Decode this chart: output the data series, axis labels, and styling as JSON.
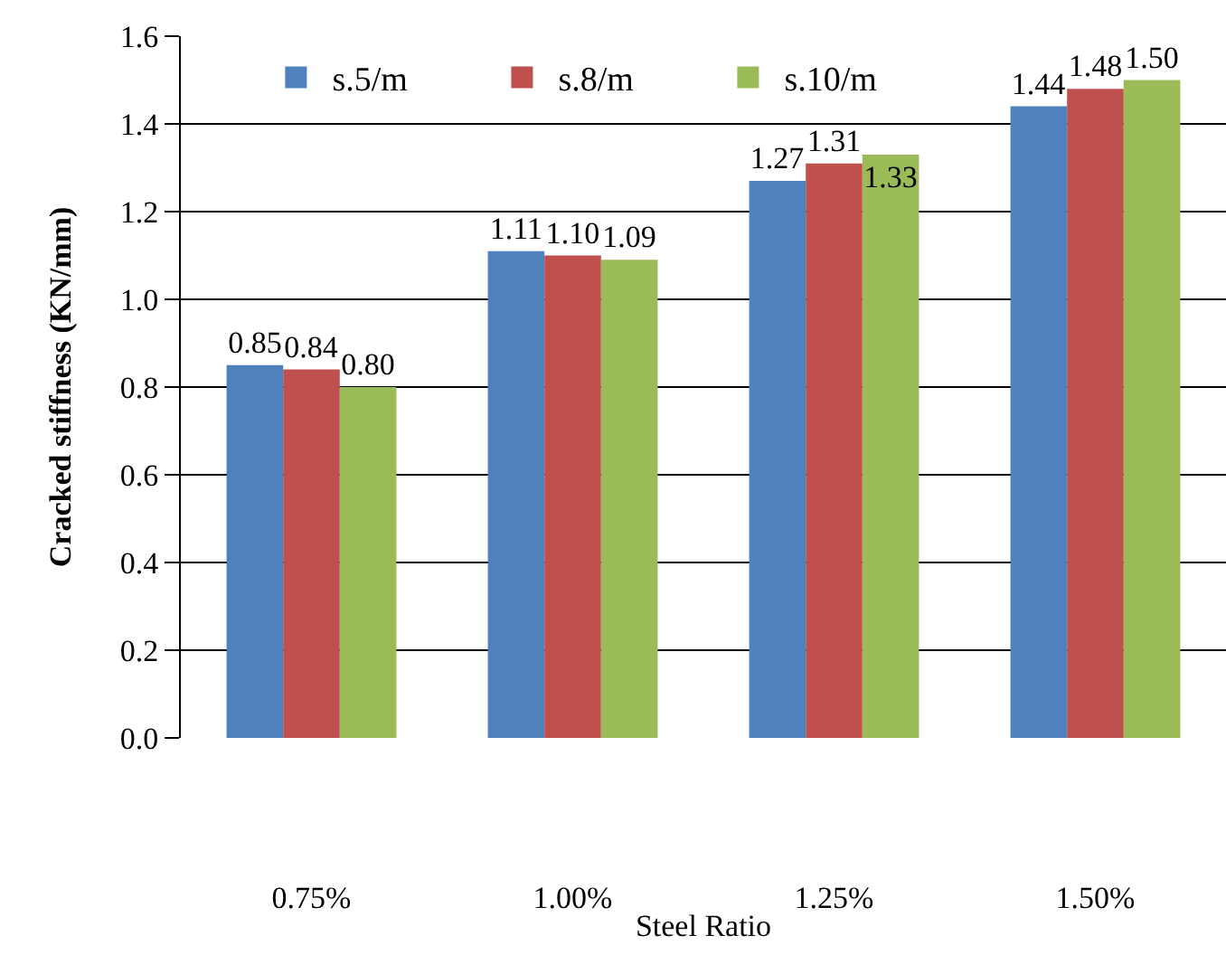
{
  "chart_data": {
    "type": "bar",
    "xlabel": "Steel Ratio",
    "ylabel": "Cracked stiffness (KN/mm)",
    "categories": [
      "0.75%",
      "1.00%",
      "1.25%",
      "1.50%"
    ],
    "series": [
      {
        "name": "s.5/m",
        "color": "#4f81bd",
        "values": [
          0.85,
          1.11,
          1.27,
          1.44
        ],
        "value_labels": [
          "0.85",
          "1.11",
          "1.27",
          "1.44"
        ]
      },
      {
        "name": "s.8/m",
        "color": "#c0504d",
        "values": [
          0.84,
          1.1,
          1.31,
          1.48
        ],
        "value_labels": [
          "0.84",
          "1.10",
          "1.31",
          "1.48"
        ]
      },
      {
        "name": "s.10/m",
        "color": "#9bbb59",
        "values": [
          0.8,
          1.09,
          1.33,
          1.5
        ],
        "value_labels": [
          "0.80",
          "1.09",
          "1.33",
          "1.50"
        ]
      }
    ],
    "ylim": [
      0,
      1.6
    ],
    "yticks": [
      {
        "value": 0,
        "label": "0.0"
      },
      0.2,
      0.4,
      0.6,
      0.8,
      {
        "value": 1,
        "label": "1.0"
      },
      1.2,
      1.4,
      1.6
    ],
    "grid": "y",
    "legend": "top"
  }
}
